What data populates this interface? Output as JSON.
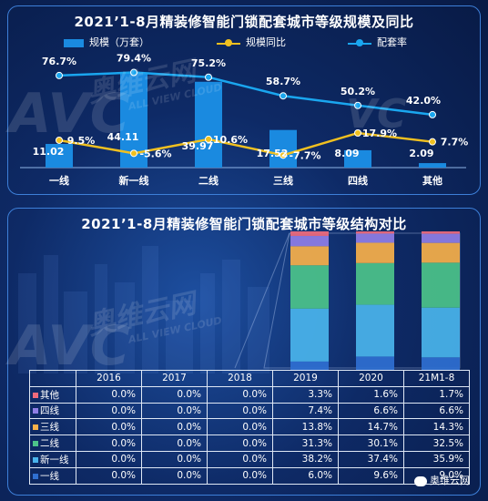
{
  "colors": {
    "bar": "#1a8ae0",
    "growth_line": "#f0c020",
    "rate_line": "#1aa6ef",
    "segments": {
      "一线": "#2f6fd1",
      "新一线": "#4ab4ec",
      "二线": "#4cc38a",
      "三线": "#f7b04a",
      "四线": "#8f7ee6",
      "其他": "#ef6a7c"
    }
  },
  "watermark": {
    "brand_cn": "奥维云网",
    "brand_en": "ALL VIEW CLOUD",
    "logo": "AVC"
  },
  "wechat_label": "奥维云网",
  "chart_data": [
    {
      "type": "bar",
      "title": "2021’1-8月精装修智能门锁配套城市等级规模及同比",
      "categories": [
        "一线",
        "新一线",
        "二线",
        "三线",
        "四线",
        "其他"
      ],
      "legend_position": "top",
      "series": [
        {
          "name": "规模（万套）",
          "type": "bar",
          "values": [
            11.02,
            44.11,
            39.97,
            17.52,
            8.09,
            2.09
          ],
          "labels": [
            "11.02",
            "44.11",
            "39.97",
            "17.52",
            "8.09",
            "2.09"
          ]
        },
        {
          "name": "规模同比",
          "type": "line",
          "values": [
            9.5,
            -5.6,
            10.6,
            -7.7,
            17.9,
            7.7
          ],
          "labels": [
            "9.5%",
            "-5.6%",
            "10.6%",
            "-7.7%",
            "17.9%",
            "7.7%"
          ]
        },
        {
          "name": "配套率",
          "type": "line",
          "values": [
            76.7,
            79.4,
            75.2,
            58.7,
            50.2,
            42.0
          ],
          "labels": [
            "76.7%",
            "79.4%",
            "75.2%",
            "58.7%",
            "50.2%",
            "42.0%"
          ]
        }
      ]
    },
    {
      "type": "table",
      "stacked_bar_columns": [
        "2019",
        "2020",
        "21M1-8"
      ],
      "title": "2021’1-8月精装修智能门锁配套城市等级结构对比",
      "columns": [
        "2016",
        "2017",
        "2018",
        "2019",
        "2020",
        "21M1-8"
      ],
      "rows": [
        {
          "name": "其他",
          "values": [
            "0.0%",
            "0.0%",
            "0.0%",
            "3.3%",
            "1.6%",
            "1.7%"
          ]
        },
        {
          "name": "四线",
          "values": [
            "0.0%",
            "0.0%",
            "0.0%",
            "7.4%",
            "6.6%",
            "6.6%"
          ]
        },
        {
          "name": "三线",
          "values": [
            "0.0%",
            "0.0%",
            "0.0%",
            "13.8%",
            "14.7%",
            "14.3%"
          ]
        },
        {
          "name": "二线",
          "values": [
            "0.0%",
            "0.0%",
            "0.0%",
            "31.3%",
            "30.1%",
            "32.5%"
          ]
        },
        {
          "name": "新一线",
          "values": [
            "0.0%",
            "0.0%",
            "0.0%",
            "38.2%",
            "37.4%",
            "35.9%"
          ]
        },
        {
          "name": "一线",
          "values": [
            "0.0%",
            "0.0%",
            "0.0%",
            "6.0%",
            "9.6%",
            "9.0%"
          ]
        }
      ]
    }
  ]
}
